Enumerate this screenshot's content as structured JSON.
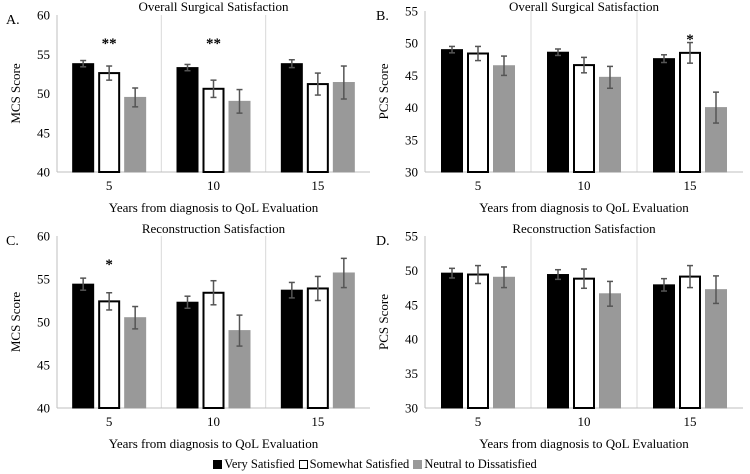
{
  "chart_data": [
    {
      "panel": "A.",
      "type": "bar",
      "title": "Overall Surgical Satisfaction",
      "xlabel": "Years from diagnosis to QoL Evaluation",
      "ylabel": "MCS Score",
      "categories": [
        "5",
        "10",
        "15"
      ],
      "ylim": [
        40,
        60
      ],
      "yticks": [
        40,
        45,
        50,
        55,
        60
      ],
      "series": [
        {
          "name": "Very Satisfied",
          "values": [
            53.8,
            53.3,
            53.8
          ],
          "errors": [
            0.4,
            0.4,
            0.5
          ]
        },
        {
          "name": "Somewhat Satisfied",
          "values": [
            52.6,
            50.6,
            51.2
          ],
          "errors": [
            0.9,
            1.1,
            1.4
          ]
        },
        {
          "name": "Neutral to Dissatisfied",
          "values": [
            49.5,
            49.0,
            51.4
          ],
          "errors": [
            1.2,
            1.5,
            2.1
          ]
        }
      ],
      "annotations": [
        "**",
        "**",
        ""
      ]
    },
    {
      "panel": "B.",
      "type": "bar",
      "title": "Overall Surgical Satisfaction",
      "xlabel": "Years from diagnosis to QoL Evaluation",
      "ylabel": "PCS Score",
      "categories": [
        "5",
        "10",
        "15"
      ],
      "ylim": [
        30,
        55
      ],
      "yticks": [
        30,
        35,
        40,
        45,
        50,
        55
      ],
      "series": [
        {
          "name": "Very Satisfied",
          "values": [
            49.0,
            48.6,
            47.6
          ],
          "errors": [
            0.5,
            0.5,
            0.6
          ]
        },
        {
          "name": "Somewhat Satisfied",
          "values": [
            48.4,
            46.6,
            48.5
          ],
          "errors": [
            1.1,
            1.2,
            1.6
          ]
        },
        {
          "name": "Neutral to Dissatisfied",
          "values": [
            46.5,
            44.7,
            40.0
          ],
          "errors": [
            1.5,
            1.7,
            2.4
          ]
        }
      ],
      "annotations": [
        "",
        "",
        "*"
      ]
    },
    {
      "panel": "C.",
      "type": "bar",
      "title": "Reconstruction Satisfaction",
      "xlabel": "Years from diagnosis to QoL Evaluation",
      "ylabel": "MCS Score",
      "categories": [
        "5",
        "10",
        "15"
      ],
      "ylim": [
        40,
        60
      ],
      "yticks": [
        40,
        45,
        50,
        55,
        60
      ],
      "series": [
        {
          "name": "Very Satisfied",
          "values": [
            54.4,
            52.3,
            53.7
          ],
          "errors": [
            0.7,
            0.7,
            0.9
          ]
        },
        {
          "name": "Somewhat Satisfied",
          "values": [
            52.4,
            53.4,
            53.9
          ],
          "errors": [
            1.0,
            1.4,
            1.4
          ]
        },
        {
          "name": "Neutral to Dissatisfied",
          "values": [
            50.5,
            49.0,
            55.7
          ],
          "errors": [
            1.3,
            1.8,
            1.7
          ]
        }
      ],
      "annotations": [
        "*",
        "",
        ""
      ]
    },
    {
      "panel": "D.",
      "type": "bar",
      "title": "Reconstruction Satisfaction",
      "xlabel": "Years from diagnosis to QoL Evaluation",
      "ylabel": "PCS Score",
      "categories": [
        "5",
        "10",
        "15"
      ],
      "ylim": [
        30,
        55
      ],
      "yticks": [
        30,
        35,
        40,
        45,
        50,
        55
      ],
      "series": [
        {
          "name": "Very Satisfied",
          "values": [
            49.6,
            49.4,
            47.9
          ],
          "errors": [
            0.7,
            0.7,
            0.9
          ]
        },
        {
          "name": "Somewhat Satisfied",
          "values": [
            49.4,
            48.8,
            49.1
          ],
          "errors": [
            1.3,
            1.4,
            1.6
          ]
        },
        {
          "name": "Neutral to Dissatisfied",
          "values": [
            49.0,
            46.6,
            47.2
          ],
          "errors": [
            1.5,
            1.8,
            2.0
          ]
        }
      ],
      "annotations": [
        "",
        "",
        ""
      ]
    }
  ],
  "legend": [
    {
      "label": "Very Satisfied",
      "fill": "#000000",
      "stroke": "#000000"
    },
    {
      "label": "Somewhat Satisfied",
      "fill": "#ffffff",
      "stroke": "#000000"
    },
    {
      "label": "Neutral to Dissatisfied",
      "fill": "#999999",
      "stroke": "#999999"
    }
  ],
  "colors": {
    "bar_strokes": [
      "#000000",
      "#000000",
      "#999999"
    ],
    "error_bar": "#555555",
    "grid": "#d9d9d9",
    "axis": "#bfbfbf"
  }
}
